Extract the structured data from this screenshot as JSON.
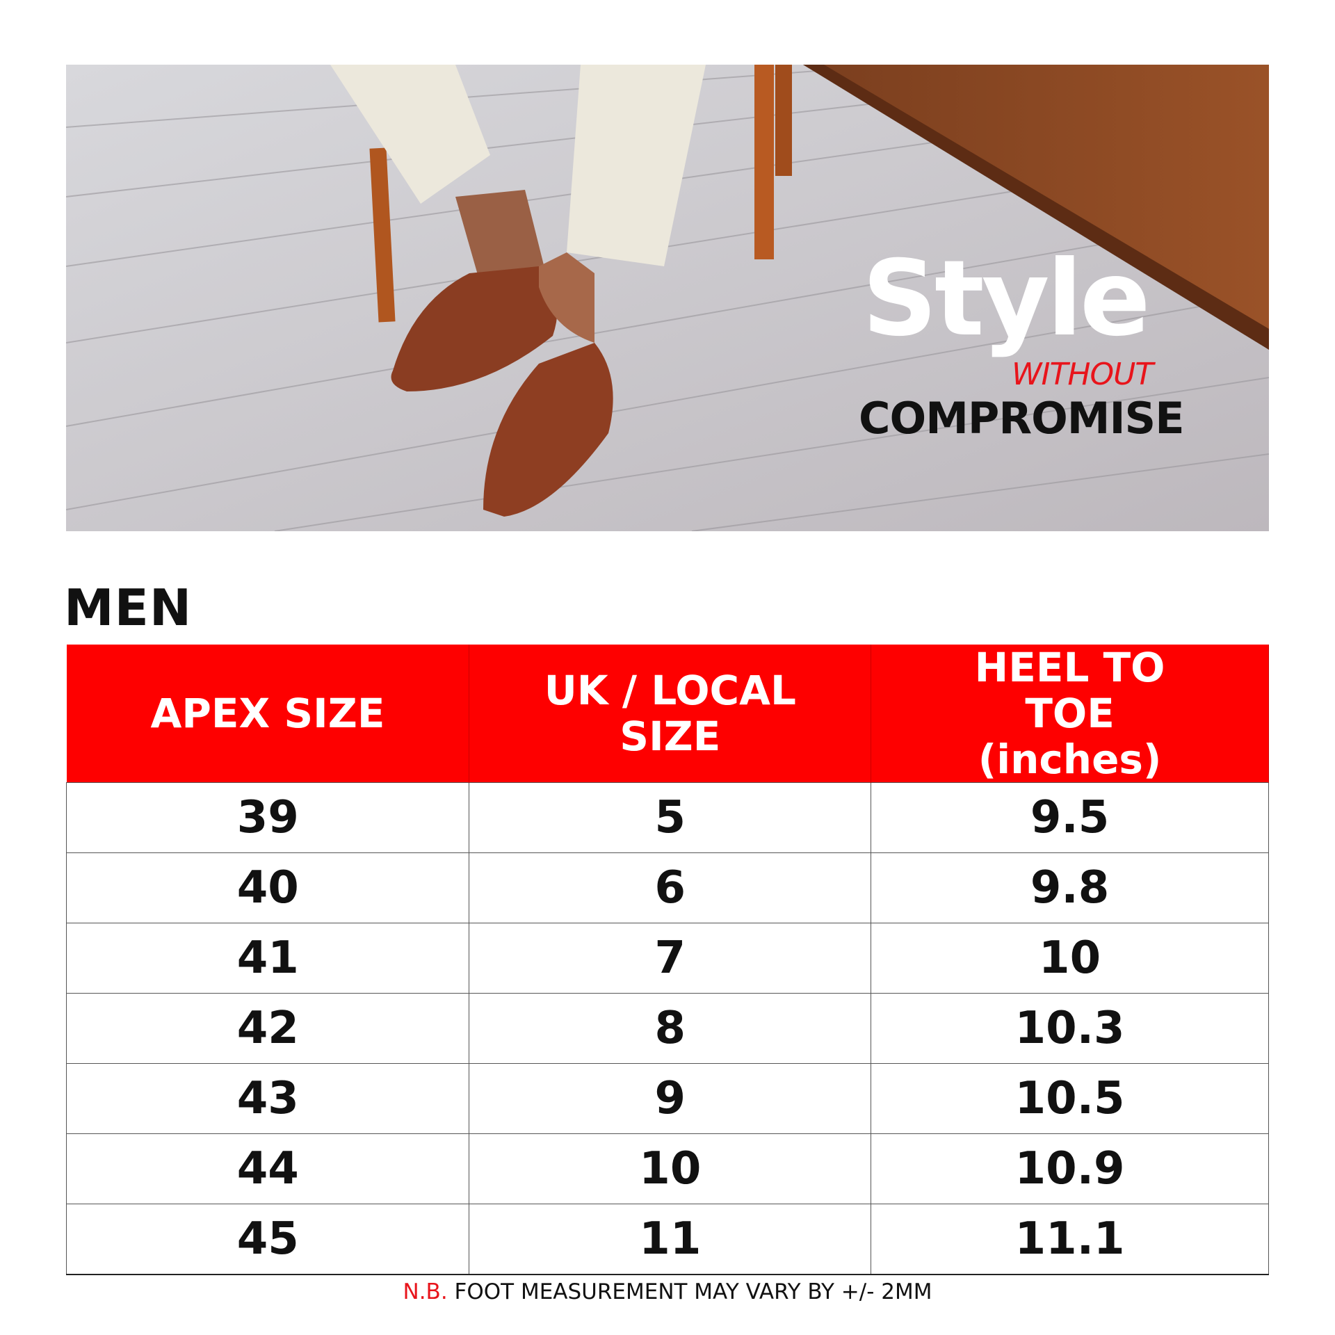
{
  "hero": {
    "tagline_main": "Style",
    "tagline_small": "WITHOUT",
    "tagline_bottom": "COMPROMISE"
  },
  "section_title": "MEN",
  "table": {
    "headers": [
      "APEX SIZE",
      "UK / LOCAL SIZE",
      "HEEL TO TOE (inches)"
    ],
    "rows": [
      [
        "39",
        "5",
        "9.5"
      ],
      [
        "40",
        "6",
        "9.8"
      ],
      [
        "41",
        "7",
        "10"
      ],
      [
        "42",
        "8",
        "10.3"
      ],
      [
        "43",
        "9",
        "10.5"
      ],
      [
        "44",
        "10",
        "10.9"
      ],
      [
        "45",
        "11",
        "11.1"
      ]
    ]
  },
  "footnote": {
    "prefix": "N.B.",
    "text": " FOOT MEASUREMENT MAY VARY BY +/- 2MM"
  },
  "colors": {
    "accent": "#fe0000",
    "text": "#111111"
  }
}
